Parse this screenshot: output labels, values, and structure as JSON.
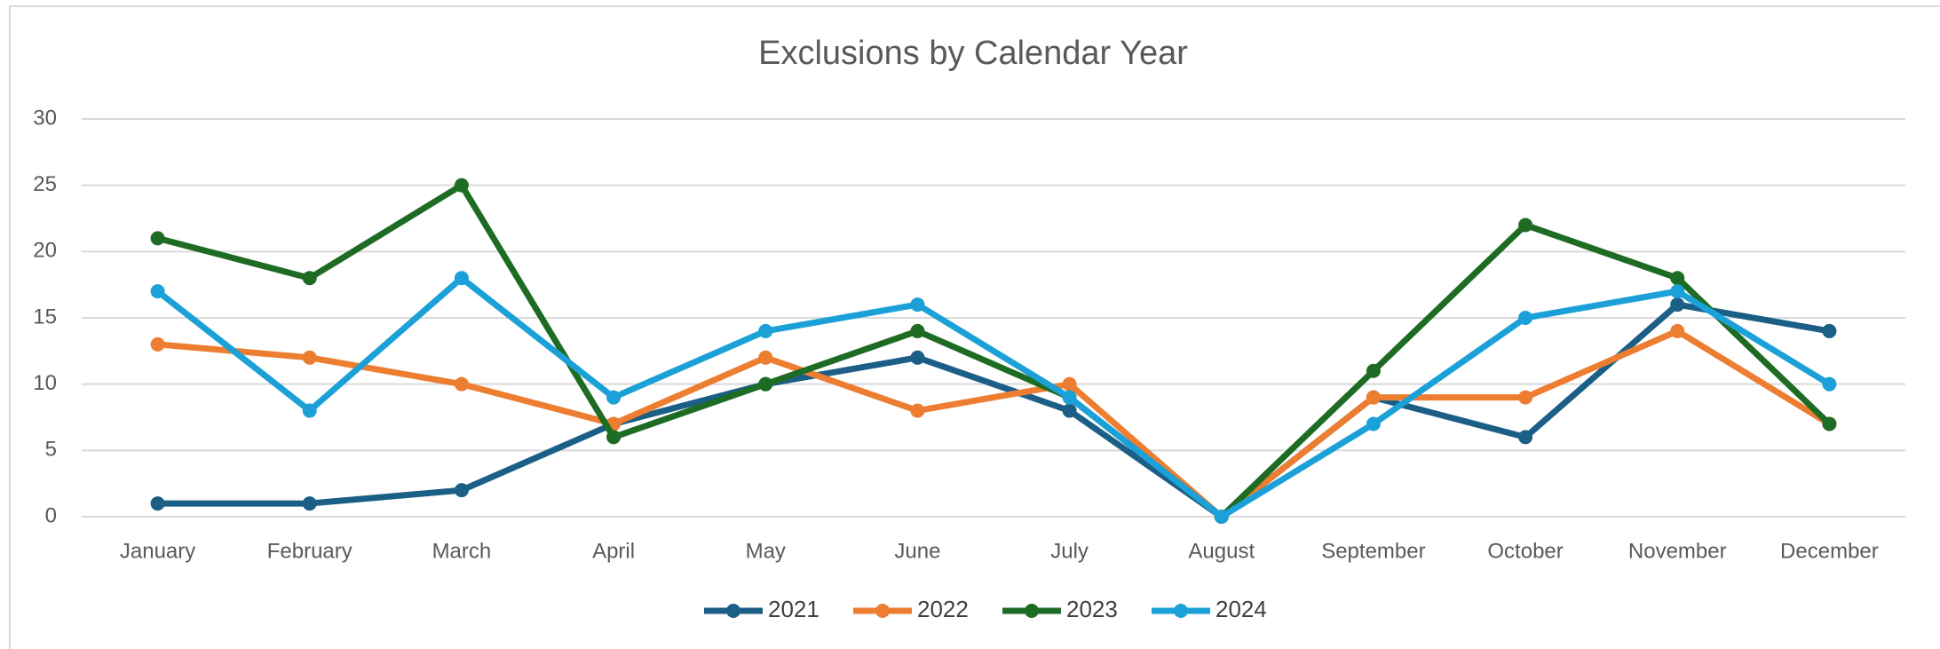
{
  "chart_data": {
    "type": "line",
    "title": "Exclusions by Calendar Year",
    "categories": [
      "January",
      "February",
      "March",
      "April",
      "May",
      "June",
      "July",
      "August",
      "September",
      "October",
      "November",
      "December"
    ],
    "series": [
      {
        "name": "2021",
        "color": "#1b5e86",
        "values": [
          1,
          1,
          2,
          7,
          10,
          12,
          8,
          0,
          9,
          6,
          16,
          14
        ]
      },
      {
        "name": "2022",
        "color": "#ed7d31",
        "values": [
          13,
          12,
          10,
          7,
          12,
          8,
          10,
          0,
          9,
          9,
          14,
          7
        ]
      },
      {
        "name": "2023",
        "color": "#1e6b24",
        "values": [
          21,
          18,
          25,
          6,
          10,
          14,
          9,
          0,
          11,
          22,
          18,
          7
        ]
      },
      {
        "name": "2024",
        "color": "#1ba1d8",
        "values": [
          17,
          8,
          18,
          9,
          14,
          16,
          9,
          0,
          7,
          15,
          17,
          10
        ]
      }
    ],
    "ylim": [
      0,
      30
    ],
    "yticks": [
      0,
      5,
      10,
      15,
      20,
      25,
      30
    ],
    "grid": true,
    "legend": "bottom"
  }
}
